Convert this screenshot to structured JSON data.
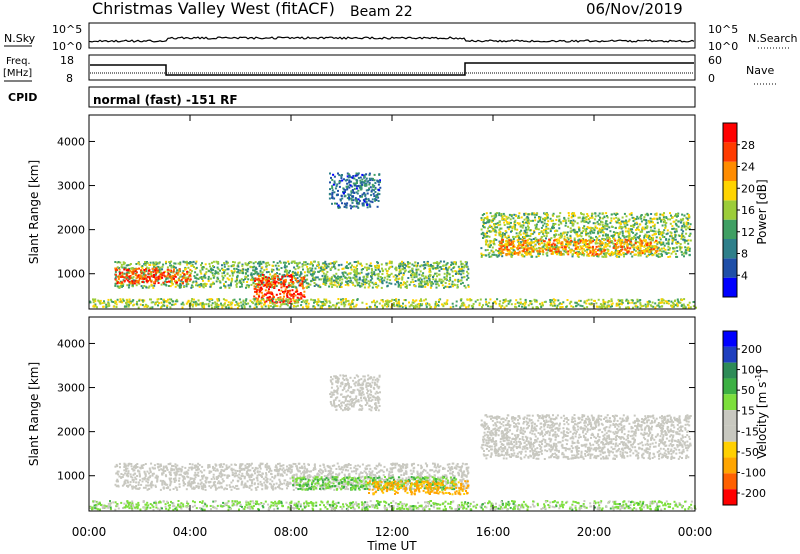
{
  "header": {
    "title": "Christmas Valley West (fitACF)",
    "beam": "Beam 22",
    "date": "06/Nov/2019"
  },
  "aux": {
    "nsky_label": "N.Sky",
    "nsky_tick_top": "10^5",
    "nsky_tick_bottom": "10^0",
    "nsearch_label": "N.Search",
    "freq_label_1": "Freq.",
    "freq_label_2": "[MHz]",
    "freq_tick_top": "18",
    "freq_tick_bottom": "8",
    "nave_label": "Nave",
    "nave_tick_top": "60",
    "nave_tick_bottom": "0",
    "cpid_label": "CPID",
    "cpid_text": "normal (fast) -151 RF"
  },
  "colors": {
    "power_scale": [
      "#0000ff",
      "#1f4fa8",
      "#2e7f8a",
      "#3f9f63",
      "#9ccd3a",
      "#ffd400",
      "#ff8c00",
      "#ff3b00",
      "#ff0000"
    ],
    "velocity_scale": [
      "#ff0000",
      "#ff6000",
      "#ffa500",
      "#ffd000",
      "#c8c8c0",
      "#c8c8c0",
      "#7ddf3c",
      "#3cb043",
      "#2e8b57",
      "#1f3fbf",
      "#0000ff"
    ]
  },
  "chart_data": [
    {
      "type": "heatmap",
      "name": "power",
      "ylabel": "Slant Range [km]",
      "yticks": [
        "1000",
        "2000",
        "3000",
        "4000"
      ],
      "ylim": [
        200,
        4600
      ],
      "xlim": [
        0,
        24
      ],
      "colorbar_label": "Power [dB]",
      "colorbar_ticks": [
        "4",
        "8",
        "12",
        "16",
        "20",
        "24",
        "28"
      ],
      "colorbar_range": [
        0,
        32
      ],
      "regions": [
        {
          "t0": 1.0,
          "t1": 15.0,
          "r0": 700,
          "r1": 1300,
          "value": 14
        },
        {
          "t0": 1.0,
          "t1": 4.0,
          "r0": 800,
          "r1": 1150,
          "value": 26
        },
        {
          "t0": 6.5,
          "t1": 8.5,
          "r0": 350,
          "r1": 1000,
          "value": 27
        },
        {
          "t0": 15.5,
          "t1": 23.8,
          "r0": 1400,
          "r1": 2400,
          "value": 15
        },
        {
          "t0": 16.2,
          "t1": 22.5,
          "r0": 1450,
          "r1": 1800,
          "value": 23
        },
        {
          "t0": 9.5,
          "t1": 11.5,
          "r0": 2500,
          "r1": 3300,
          "value": 8
        },
        {
          "t0": 0.0,
          "t1": 24.0,
          "r0": 250,
          "r1": 450,
          "value": 16
        }
      ]
    },
    {
      "type": "heatmap",
      "name": "velocity",
      "ylabel": "Slant Range [km]",
      "yticks": [
        "1000",
        "2000",
        "3000",
        "4000"
      ],
      "ylim": [
        200,
        4600
      ],
      "xlim": [
        0,
        24
      ],
      "xlabel": "Time UT",
      "xticks": [
        "00:00",
        "04:00",
        "08:00",
        "12:00",
        "16:00",
        "20:00",
        "00:00"
      ],
      "colorbar_label": "Velocity [m s",
      "colorbar_label_sup": "-1",
      "colorbar_label_end": "]",
      "colorbar_ticks": [
        "-200",
        "-100",
        "-50",
        "-15",
        "15",
        "50",
        "100",
        "200"
      ],
      "regions": [
        {
          "t0": 1.0,
          "t1": 15.0,
          "r0": 700,
          "r1": 1300,
          "value": 0
        },
        {
          "t0": 8.0,
          "t1": 14.5,
          "r0": 700,
          "r1": 1000,
          "value": 30
        },
        {
          "t0": 11.0,
          "t1": 15.0,
          "r0": 600,
          "r1": 900,
          "value": -40
        },
        {
          "t0": 15.5,
          "t1": 23.8,
          "r0": 1400,
          "r1": 2400,
          "value": 0
        },
        {
          "t0": 9.5,
          "t1": 11.5,
          "r0": 2500,
          "r1": 3300,
          "value": 0
        },
        {
          "t0": 0.0,
          "t1": 24.0,
          "r0": 250,
          "r1": 450,
          "value": 20
        }
      ]
    }
  ]
}
